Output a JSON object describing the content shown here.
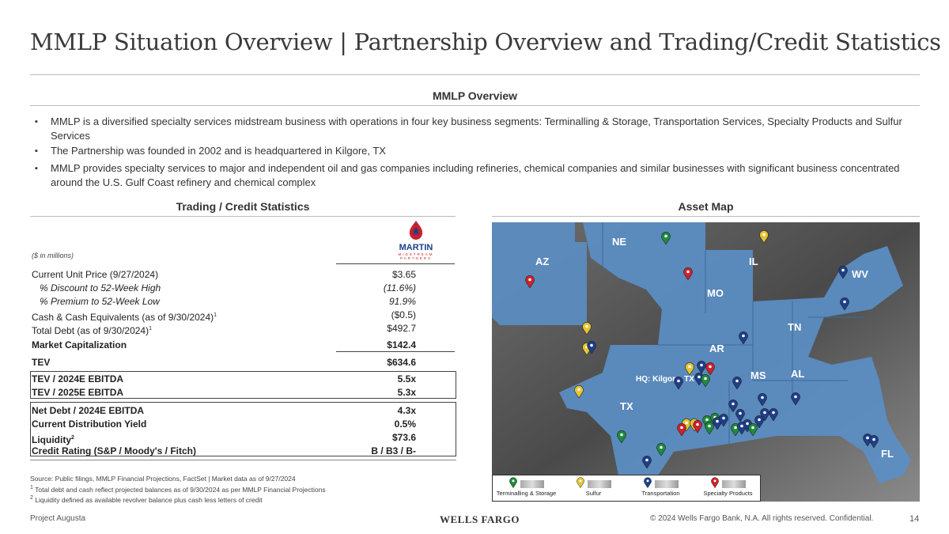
{
  "title": "MMLP Situation Overview | Partnership Overview and Trading/Credit Statistics",
  "overview": {
    "heading": "MMLP Overview",
    "bullets": [
      "MMLP is a diversified specialty services midstream business with operations in four key business segments: Terminalling & Storage, Transportation Services, Specialty Products and Sulfur Services",
      "The Partnership was founded in 2002 and is headquartered in Kilgore, TX",
      "MMLP provides specialty services to major and independent oil and gas companies including refineries, chemical companies and similar businesses with significant business concentrated around the U.S. Gulf Coast refinery and chemical complex"
    ]
  },
  "stats": {
    "heading": "Trading / Credit Statistics",
    "units": "($ in millions)",
    "logo": {
      "name": "MARTIN",
      "sub1": "MIDSTREAM",
      "sub2": "PARTNERS"
    },
    "rows": [
      {
        "label": "Current Unit Price (9/27/2024)",
        "value": "$3.65"
      },
      {
        "label": "% Discount to 52-Week High",
        "value": "(11.6%)"
      },
      {
        "label": "% Premium to 52-Week Low",
        "value": "91.9%"
      },
      {
        "label": "Cash & Cash Equivalents (as of 9/30/2024)",
        "sup": "1",
        "value": "($0.5)"
      },
      {
        "label": "Total Debt (as of 9/30/2024)",
        "sup": "1",
        "value": "$492.7"
      },
      {
        "label": "Market Capitalization",
        "value": "$142.4"
      },
      {
        "label": "TEV",
        "value": "$634.6"
      },
      {
        "label": "TEV / 2024E EBITDA",
        "value": "5.5x"
      },
      {
        "label": "TEV / 2025E EBITDA",
        "value": "5.3x"
      },
      {
        "label": "Net Debt / 2024E EBITDA",
        "value": "4.3x"
      },
      {
        "label": "Current Distribution Yield",
        "value": "0.5%"
      },
      {
        "label": "Liquidity",
        "sup": "2",
        "value": "$73.6"
      },
      {
        "label": "Credit Rating (S&P / Moody's / Fitch)",
        "value": "B / B3 / B-"
      }
    ]
  },
  "footnotes": {
    "source": "Source: Public filings, MMLP Financial Projections, FactSet | Market data as of 9/27/2024",
    "n1": "Total debt and cash reflect projected balances as of 9/30/2024 as per MMLP Financial Projections",
    "n2": "Liquidity defined as available revolver balance plus cash less letters of credit"
  },
  "map": {
    "heading": "Asset Map",
    "states": [
      "NE",
      "AZ",
      "IL",
      "WV",
      "MO",
      "TN",
      "AR",
      "AL",
      "MS",
      "TX",
      "FL"
    ],
    "hq": "HQ: Kilgore, TX",
    "legend": [
      {
        "label": "Terminalling & Storage",
        "color": "#1e8a3e"
      },
      {
        "label": "Sulfur",
        "color": "#e8c530"
      },
      {
        "label": "Transportation",
        "color": "#1f3f8a"
      },
      {
        "label": "Specialty Products",
        "color": "#d0202a"
      }
    ]
  },
  "footer": {
    "project": "Project Augusta",
    "brand": "WELLS FARGO",
    "copyright": "© 2024 Wells Fargo Bank, N.A. All rights reserved. Confidential.",
    "page": "14"
  }
}
